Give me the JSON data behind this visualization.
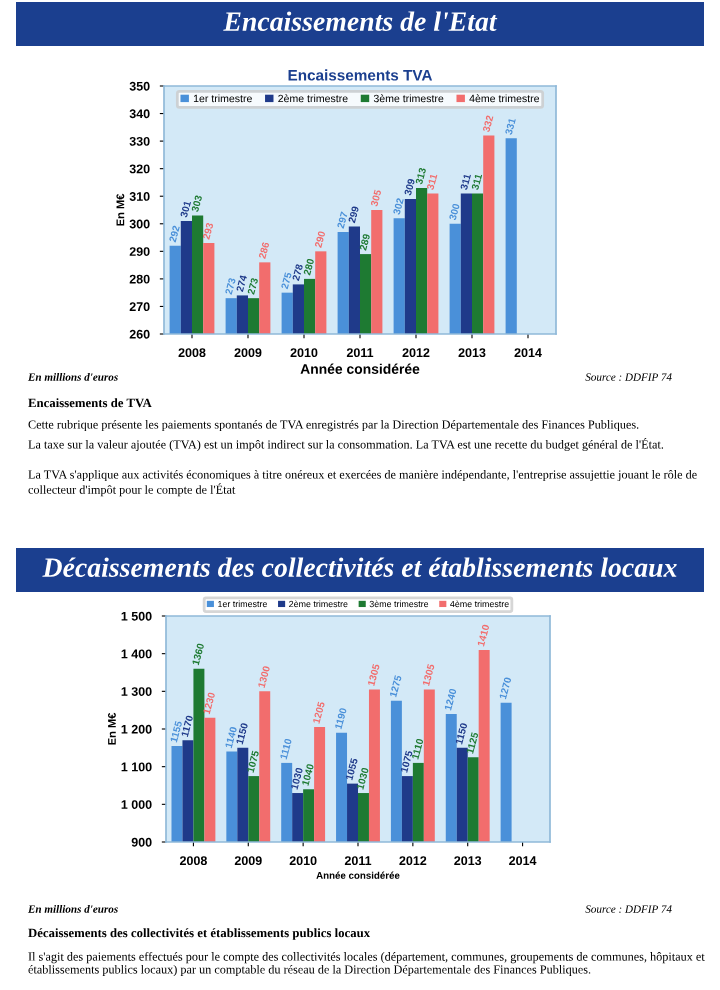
{
  "chart_data": [
    {
      "type": "bar",
      "title": "Encaissements TVA",
      "xlabel": "Année considérée",
      "ylabel": "En M€",
      "categories": [
        "2008",
        "2009",
        "2010",
        "2011",
        "2012",
        "2013",
        "2014"
      ],
      "series": [
        {
          "name": "1er trimestre",
          "color": "#4a90d9",
          "values": [
            292,
            273,
            275,
            297,
            302,
            300,
            331
          ]
        },
        {
          "name": "2ème trimestre",
          "color": "#1f3a8a",
          "values": [
            301,
            274,
            278,
            299,
            309,
            311,
            null
          ]
        },
        {
          "name": "3ème trimestre",
          "color": "#1e7a32",
          "values": [
            303,
            273,
            280,
            289,
            313,
            311,
            null
          ]
        },
        {
          "name": "4ème trimestre",
          "color": "#f26d6d",
          "values": [
            293,
            286,
            290,
            305,
            311,
            332,
            null
          ]
        }
      ],
      "ylim": [
        260,
        350
      ],
      "yticks": [
        260,
        270,
        280,
        290,
        300,
        310,
        320,
        330,
        340,
        350
      ],
      "data_labels": true,
      "legend": "top",
      "grid": false,
      "annotations": [
        "Encaissements de l'Etat",
        "En millions d'euros",
        "Source : DDFIP 74",
        "Encaissements de TVA",
        "Cette rubrique présente les paiements spontanés de TVA enregistrés par la Direction Départementale des Finances Publiques.",
        "La taxe sur la valeur ajoutée (TVA) est un impôt indirect sur la consommation. La TVA est une recette du budget général de l'État.",
        "La TVA s'applique aux activités économiques à titre onéreux et exercées de manière indépendante, l'entreprise assujettie jouant le rôle de collecteur d'impôt pour le compte de l'État"
      ]
    },
    {
      "type": "bar",
      "title": "Décaissements des collectivités et établissements locaux",
      "xlabel": "Année considérée",
      "ylabel": "En M€",
      "categories": [
        "2008",
        "2009",
        "2010",
        "2011",
        "2012",
        "2013",
        "2014"
      ],
      "series": [
        {
          "name": "1er trimestre",
          "color": "#4a90d9",
          "values": [
            1155,
            1140,
            1110,
            1190,
            1275,
            1240,
            1270
          ]
        },
        {
          "name": "2ème trimestre",
          "color": "#1f3a8a",
          "values": [
            1170,
            1150,
            1030,
            1055,
            1075,
            1150,
            null
          ]
        },
        {
          "name": "3ème trimestre",
          "color": "#1e7a32",
          "values": [
            1360,
            1075,
            1040,
            1030,
            1110,
            1125,
            null
          ]
        },
        {
          "name": "4ème trimestre",
          "color": "#f26d6d",
          "values": [
            1230,
            1300,
            1205,
            1305,
            1305,
            1410,
            null
          ]
        }
      ],
      "ylim": [
        900,
        1500
      ],
      "yticks": [
        {
          "value": 900,
          "label": "900"
        },
        {
          "value": 1000,
          "label": "1 000"
        },
        {
          "value": 1100,
          "label": "1 100"
        },
        {
          "value": 1200,
          "label": "1 200"
        },
        {
          "value": 1300,
          "label": "1 300"
        },
        {
          "value": 1400,
          "label": "1 400"
        },
        {
          "value": 1500,
          "label": "1 500"
        }
      ],
      "data_labels": true,
      "legend": "top",
      "grid": false,
      "annotations": [
        "En millions d'euros",
        "Source : DDFIP 74",
        "Décaissements des collectivités et établissements publics locaux",
        "Il s'agit des paiements effectués pour le compte des collectivités locales (département, communes, groupements de communes, hôpitaux et établissements publics locaux) par un comptable du réseau de la Direction Départementale des Finances Publiques."
      ]
    }
  ]
}
